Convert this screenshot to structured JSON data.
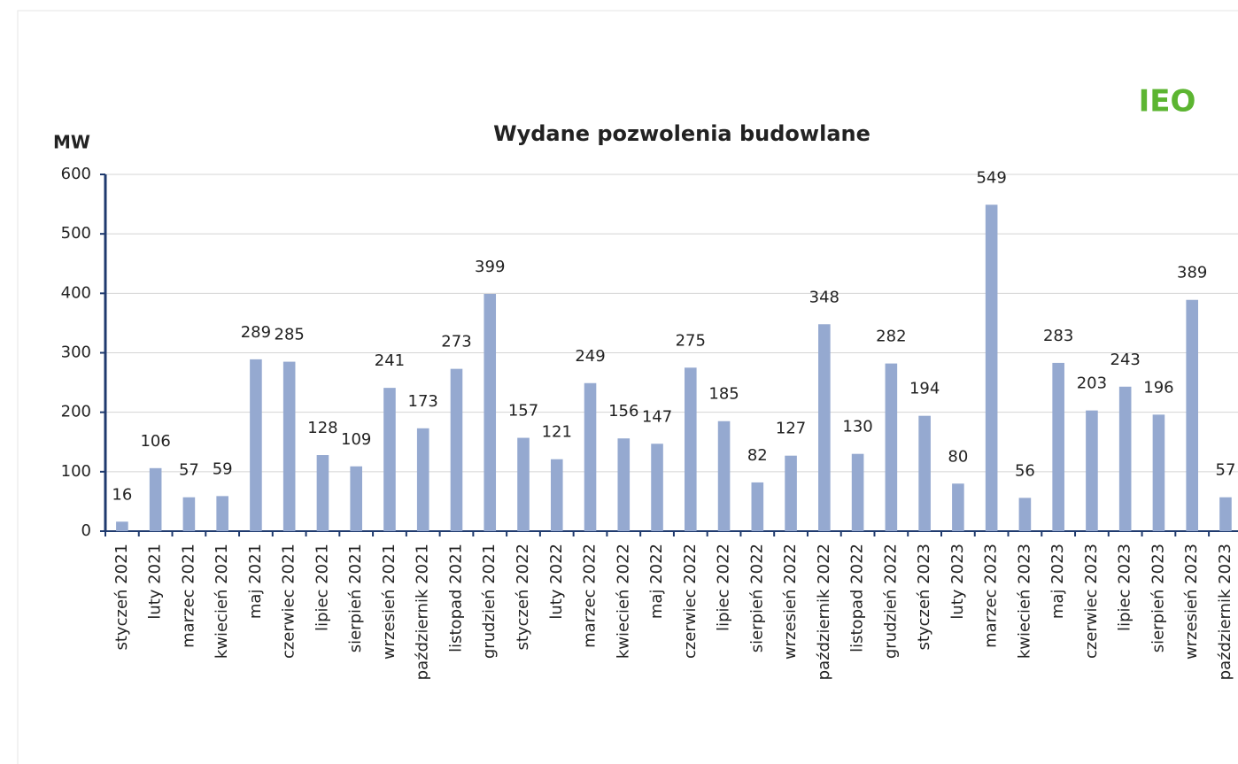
{
  "chart_data": {
    "type": "bar",
    "title": "Wydane pozwolenia budowlane",
    "y_label": "MW",
    "logo": "IEO",
    "categories": [
      "styczeń 2021",
      "luty 2021",
      "marzec 2021",
      "kwiecień 2021",
      "maj 2021",
      "czerwiec 2021",
      "lipiec 2021",
      "sierpień 2021",
      "wrzesień 2021",
      "październik 2021",
      "listopad 2021",
      "grudzień 2021",
      "styczeń 2022",
      "luty 2022",
      "marzec 2022",
      "kwiecień 2022",
      "maj 2022",
      "czerwiec 2022",
      "lipiec 2022",
      "sierpień 2022",
      "wrzesień 2022",
      "październik 2022",
      "listopad 2022",
      "grudzień 2022",
      "styczeń 2023",
      "luty 2023",
      "marzec 2023",
      "kwiecień 2023",
      "maj 2023",
      "czerwiec 2023",
      "lipiec 2023",
      "sierpień 2023",
      "wrzesień 2023",
      "październik 2023"
    ],
    "values": [
      16,
      106,
      57,
      59,
      289,
      285,
      128,
      109,
      241,
      173,
      273,
      399,
      157,
      121,
      249,
      156,
      147,
      275,
      185,
      82,
      127,
      348,
      130,
      282,
      194,
      80,
      549,
      56,
      283,
      203,
      243,
      196,
      389,
      57
    ],
    "color": "#95a9d0",
    "ylim": [
      0,
      600
    ],
    "yticks": [
      0,
      100,
      200,
      300,
      400,
      500,
      600
    ],
    "grid": true
  }
}
